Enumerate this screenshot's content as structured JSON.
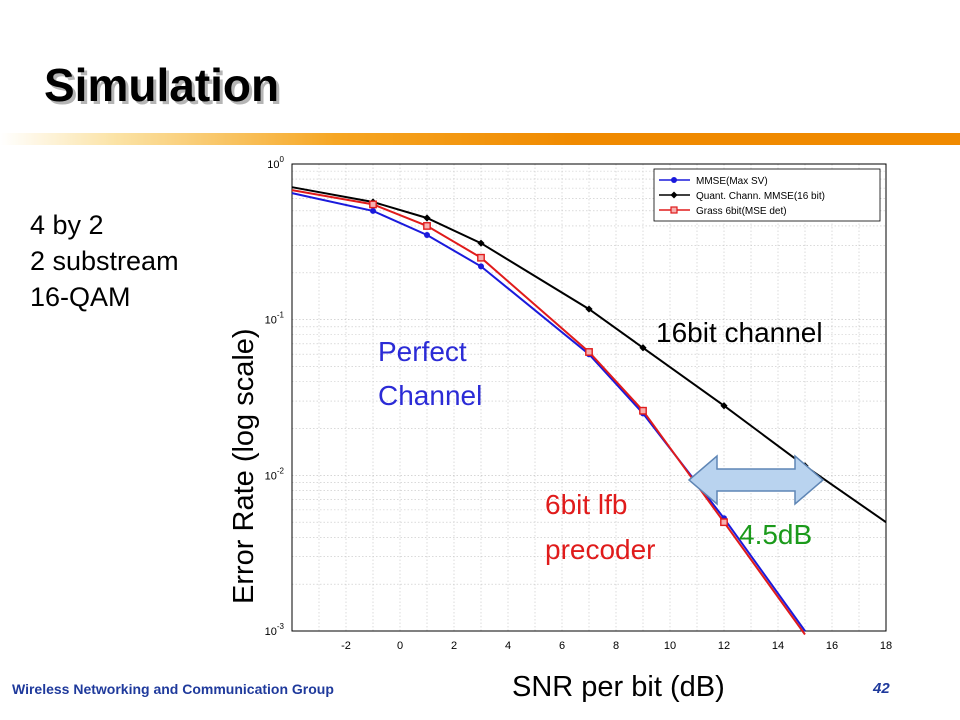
{
  "slide": {
    "title": "Simulation",
    "config_lines": [
      "4 by 2",
      "2 substream",
      "16-QAM"
    ],
    "footer_left": "Wireless Networking and Communication Group",
    "footer_right": "42",
    "accent_color": "#f08a00"
  },
  "chart_data": {
    "type": "line",
    "title": "",
    "xlabel": "SNR per bit (dB)",
    "ylabel": "Error Rate (log scale)",
    "xlim": [
      -4,
      18
    ],
    "ylim": [
      0.001,
      1
    ],
    "yscale": "log",
    "grid": true,
    "legend_position": "top-right",
    "xticks": [
      "-2",
      "0",
      "2",
      "4",
      "6",
      "8",
      "10",
      "12",
      "14",
      "16",
      "18"
    ],
    "yticks": [
      {
        "base": "10",
        "exp": "0",
        "value": 1
      },
      {
        "base": "10",
        "exp": "-1",
        "value": 0.1
      },
      {
        "base": "10",
        "exp": "-2",
        "value": 0.01
      },
      {
        "base": "10",
        "exp": "-3",
        "value": 0.001
      }
    ],
    "series": [
      {
        "name": "MMSE(Max SV)",
        "color": "#1a1adc",
        "marker": "circle",
        "x": [
          -4,
          -1,
          1,
          3,
          7,
          9,
          12,
          15
        ],
        "y": [
          0.65,
          0.5,
          0.35,
          0.22,
          0.06,
          0.025,
          0.0053,
          0.001
        ]
      },
      {
        "name": "Quant. Chann. MMSE(16 bit)",
        "color": "#000000",
        "marker": "diamond",
        "x": [
          -4,
          -1,
          1,
          3,
          7,
          9,
          12,
          15,
          18
        ],
        "y": [
          0.71,
          0.57,
          0.45,
          0.31,
          0.117,
          0.066,
          0.028,
          0.0115,
          0.005
        ]
      },
      {
        "name": "Grass 6bit(MSE det)",
        "color": "#e01b1b",
        "marker": "square",
        "x": [
          -4,
          -1,
          1,
          3,
          7,
          9,
          12,
          15
        ],
        "y": [
          0.68,
          0.55,
          0.4,
          0.25,
          0.062,
          0.026,
          0.005,
          0.00095
        ]
      }
    ],
    "annotations": [
      {
        "text": "Perfect",
        "color": "#2b2bd6"
      },
      {
        "text": "Channel",
        "color": "#2b2bd6"
      },
      {
        "text": "16bit channel",
        "color": "#000000"
      },
      {
        "text": "6bit lfb",
        "color": "#e01b1b"
      },
      {
        "text": "precoder",
        "color": "#e01b1b"
      },
      {
        "text": "4.5dB",
        "color": "#1b9a1b"
      }
    ],
    "gap_arrow": {
      "from_x": 11,
      "to_x": 15,
      "color": "#b9d3ef"
    }
  }
}
